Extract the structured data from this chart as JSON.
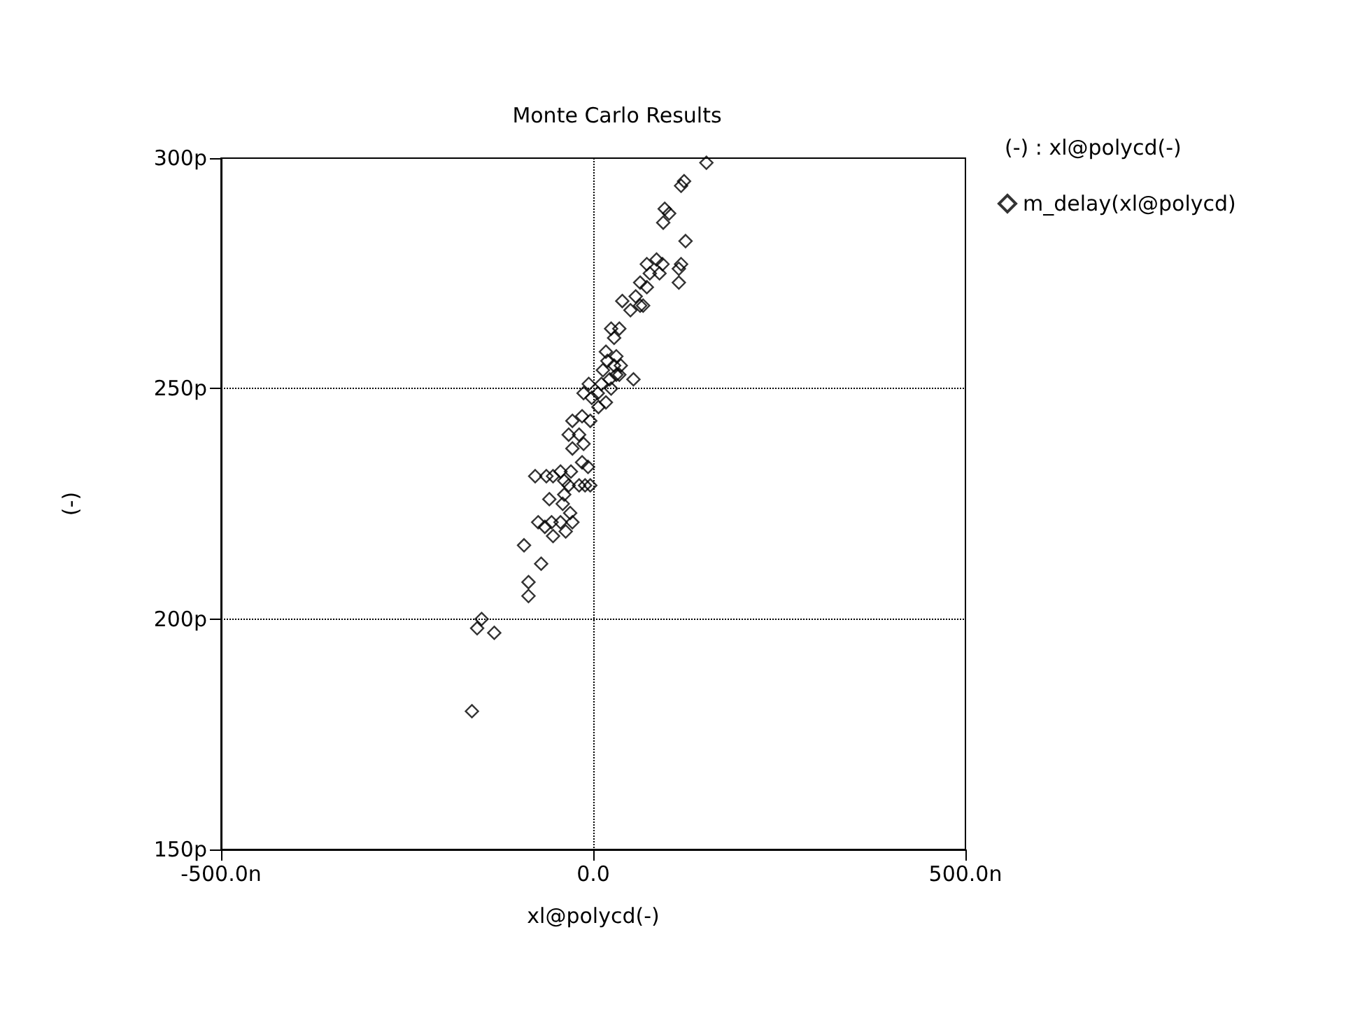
{
  "chart_data": {
    "type": "scatter",
    "title": "Monte Carlo Results",
    "xlabel": "xl@polycd(-)",
    "ylabel": "(-)",
    "annotations": [
      "(-) : xl@polycd(-)"
    ],
    "xlim": [
      -500,
      500
    ],
    "xticks": [
      {
        "value": -500,
        "label": "-500.0n"
      },
      {
        "value": 0,
        "label": "0.0"
      },
      {
        "value": 500,
        "label": "500.0n"
      }
    ],
    "ylim": [
      150,
      300
    ],
    "yticks": [
      {
        "value": 150,
        "label": "150p"
      },
      {
        "value": 200,
        "label": "200p"
      },
      {
        "value": 250,
        "label": "250p"
      },
      {
        "value": 300,
        "label": "300p"
      }
    ],
    "grid": true,
    "legend": "right",
    "marker": "diamond",
    "series": [
      {
        "name": "m_delay(xl@polycd)",
        "color": "#000000",
        "x": [
          152,
          122,
          118,
          96,
          102,
          94,
          124,
          85,
          72,
          93,
          118,
          115,
          89,
          115,
          76,
          63,
          72,
          57,
          63,
          39,
          50,
          67,
          35,
          24,
          28,
          17,
          31,
          19,
          28,
          37,
          54,
          -6,
          11,
          22,
          31,
          13,
          6,
          24,
          35,
          -13,
          -2,
          17,
          7,
          -28,
          -15,
          -4,
          -33,
          -19,
          -13,
          -28,
          -15,
          -7,
          -30,
          -44,
          -54,
          -63,
          -78,
          -39,
          -19,
          -11,
          -4,
          -33,
          -59,
          -39,
          -41,
          -31,
          -28,
          -56,
          -44,
          -65,
          -74,
          -54,
          -37,
          -93,
          -70,
          -87,
          -87,
          -150,
          -156,
          -133,
          -163
        ],
        "values": [
          299,
          295,
          294,
          289,
          288,
          286,
          282,
          278,
          277,
          277,
          277,
          276,
          275,
          273,
          275,
          273,
          272,
          270,
          268,
          269,
          267,
          268,
          263,
          263,
          261,
          258,
          257,
          256,
          255,
          255,
          252,
          251,
          251,
          252,
          253,
          254,
          249,
          250,
          253,
          249,
          248,
          247,
          246,
          243,
          244,
          243,
          240,
          240,
          238,
          237,
          234,
          233,
          232,
          232,
          231,
          231,
          231,
          230,
          229,
          229,
          229,
          229,
          226,
          227,
          225,
          223,
          221,
          221,
          221,
          220,
          221,
          218,
          219,
          216,
          212,
          208,
          205,
          200,
          198,
          197,
          180
        ]
      }
    ]
  }
}
